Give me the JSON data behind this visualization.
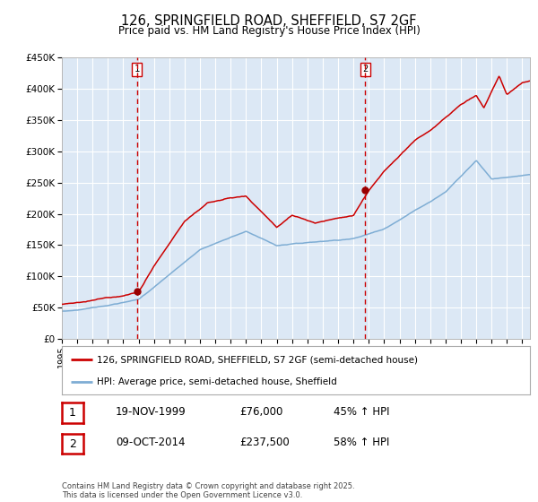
{
  "title": "126, SPRINGFIELD ROAD, SHEFFIELD, S7 2GF",
  "subtitle": "Price paid vs. HM Land Registry's House Price Index (HPI)",
  "background_color": "#ffffff",
  "plot_bg_color": "#dce8f5",
  "grid_color": "#ffffff",
  "red_line_color": "#cc0000",
  "blue_line_color": "#7eadd4",
  "dashed_line_color": "#cc0000",
  "marker_color": "#990000",
  "ylim": [
    0,
    450000
  ],
  "yticks": [
    0,
    50000,
    100000,
    150000,
    200000,
    250000,
    300000,
    350000,
    400000,
    450000
  ],
  "ytick_labels": [
    "£0",
    "£50K",
    "£100K",
    "£150K",
    "£200K",
    "£250K",
    "£300K",
    "£350K",
    "£400K",
    "£450K"
  ],
  "xtick_years": [
    1995,
    1996,
    1997,
    1998,
    1999,
    2000,
    2001,
    2002,
    2003,
    2004,
    2005,
    2006,
    2007,
    2008,
    2009,
    2010,
    2011,
    2012,
    2013,
    2014,
    2015,
    2016,
    2017,
    2018,
    2019,
    2020,
    2021,
    2022,
    2023,
    2024,
    2025
  ],
  "sale1_year": 1999.88,
  "sale1_value": 76000,
  "sale1_label": "1",
  "sale1_date": "19-NOV-1999",
  "sale1_price": "£76,000",
  "sale1_hpi": "45% ↑ HPI",
  "sale2_year": 2014.77,
  "sale2_value": 237500,
  "sale2_label": "2",
  "sale2_date": "09-OCT-2014",
  "sale2_price": "£237,500",
  "sale2_hpi": "58% ↑ HPI",
  "legend_line1": "126, SPRINGFIELD ROAD, SHEFFIELD, S7 2GF (semi-detached house)",
  "legend_line2": "HPI: Average price, semi-detached house, Sheffield",
  "footer": "Contains HM Land Registry data © Crown copyright and database right 2025.\nThis data is licensed under the Open Government Licence v3.0."
}
